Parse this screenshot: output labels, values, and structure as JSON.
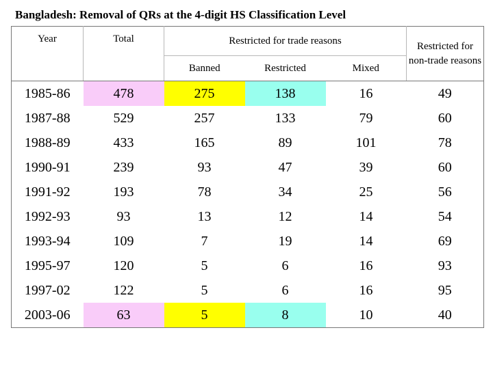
{
  "title": "Bangladesh: Removal of QRs at the 4-digit HS Classification Level",
  "headers": {
    "year": "Year",
    "total": "Total",
    "trade_group": "Restricted for trade reasons",
    "banned": "Banned",
    "restricted": "Restricted",
    "mixed": "Mixed",
    "nontrade": "Restricted for non-trade reasons"
  },
  "rows": [
    {
      "year": "1985-86",
      "total": "478",
      "banned": "275",
      "restricted": "138",
      "mixed": "16",
      "nontrade": "49"
    },
    {
      "year": "1987-88",
      "total": "529",
      "banned": "257",
      "restricted": "133",
      "mixed": "79",
      "nontrade": "60"
    },
    {
      "year": "1988-89",
      "total": "433",
      "banned": "165",
      "restricted": "89",
      "mixed": "101",
      "nontrade": "78"
    },
    {
      "year": "1990-91",
      "total": "239",
      "banned": "93",
      "restricted": "47",
      "mixed": "39",
      "nontrade": "60"
    },
    {
      "year": "1991-92",
      "total": "193",
      "banned": "78",
      "restricted": "34",
      "mixed": "25",
      "nontrade": "56"
    },
    {
      "year": "1992-93",
      "total": "93",
      "banned": "13",
      "restricted": "12",
      "mixed": "14",
      "nontrade": "54"
    },
    {
      "year": "1993-94",
      "total": "109",
      "banned": "7",
      "restricted": "19",
      "mixed": "14",
      "nontrade": "69"
    },
    {
      "year": "1995-97",
      "total": "120",
      "banned": "5",
      "restricted": "6",
      "mixed": "16",
      "nontrade": "93"
    },
    {
      "year": "1997-02",
      "total": "122",
      "banned": "5",
      "restricted": "6",
      "mixed": "16",
      "nontrade": "95"
    },
    {
      "year": "2003-06",
      "total": "63",
      "banned": "5",
      "restricted": "8",
      "mixed": "10",
      "nontrade": "40"
    }
  ],
  "colors": {
    "total_highlight": "#f9ccf9",
    "banned_highlight": "#ffff00",
    "restricted_highlight": "#99ffee"
  }
}
